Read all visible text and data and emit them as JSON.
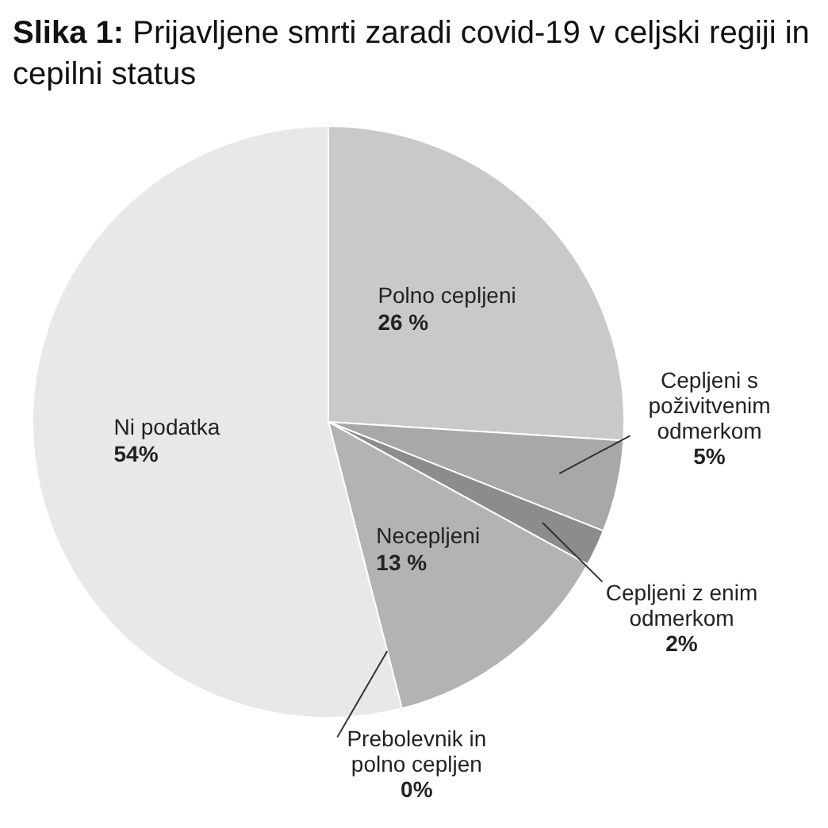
{
  "chart_data": {
    "type": "pie",
    "title": "Slika 1: Prijavljene smrti zaradi covid-19 v celjski regiji in cepilni status",
    "categories": [
      "Polno cepljeni",
      "Cepljeni s poživitvenim odmerkom",
      "Cepljeni z enim odmerkom",
      "Necepljeni",
      "Prebolevnik in polno cepljen",
      "Ni podatka"
    ],
    "values": [
      26,
      5,
      2,
      13,
      0,
      54
    ],
    "value_labels": [
      "26 %",
      "5%",
      "2%",
      "13 %",
      "0%",
      "54%"
    ],
    "colors": [
      "#c9c9c9",
      "#a8a8a8",
      "#8c8c8c",
      "#b3b3b3",
      "#707070",
      "#e8e8e8"
    ],
    "legend": false
  }
}
